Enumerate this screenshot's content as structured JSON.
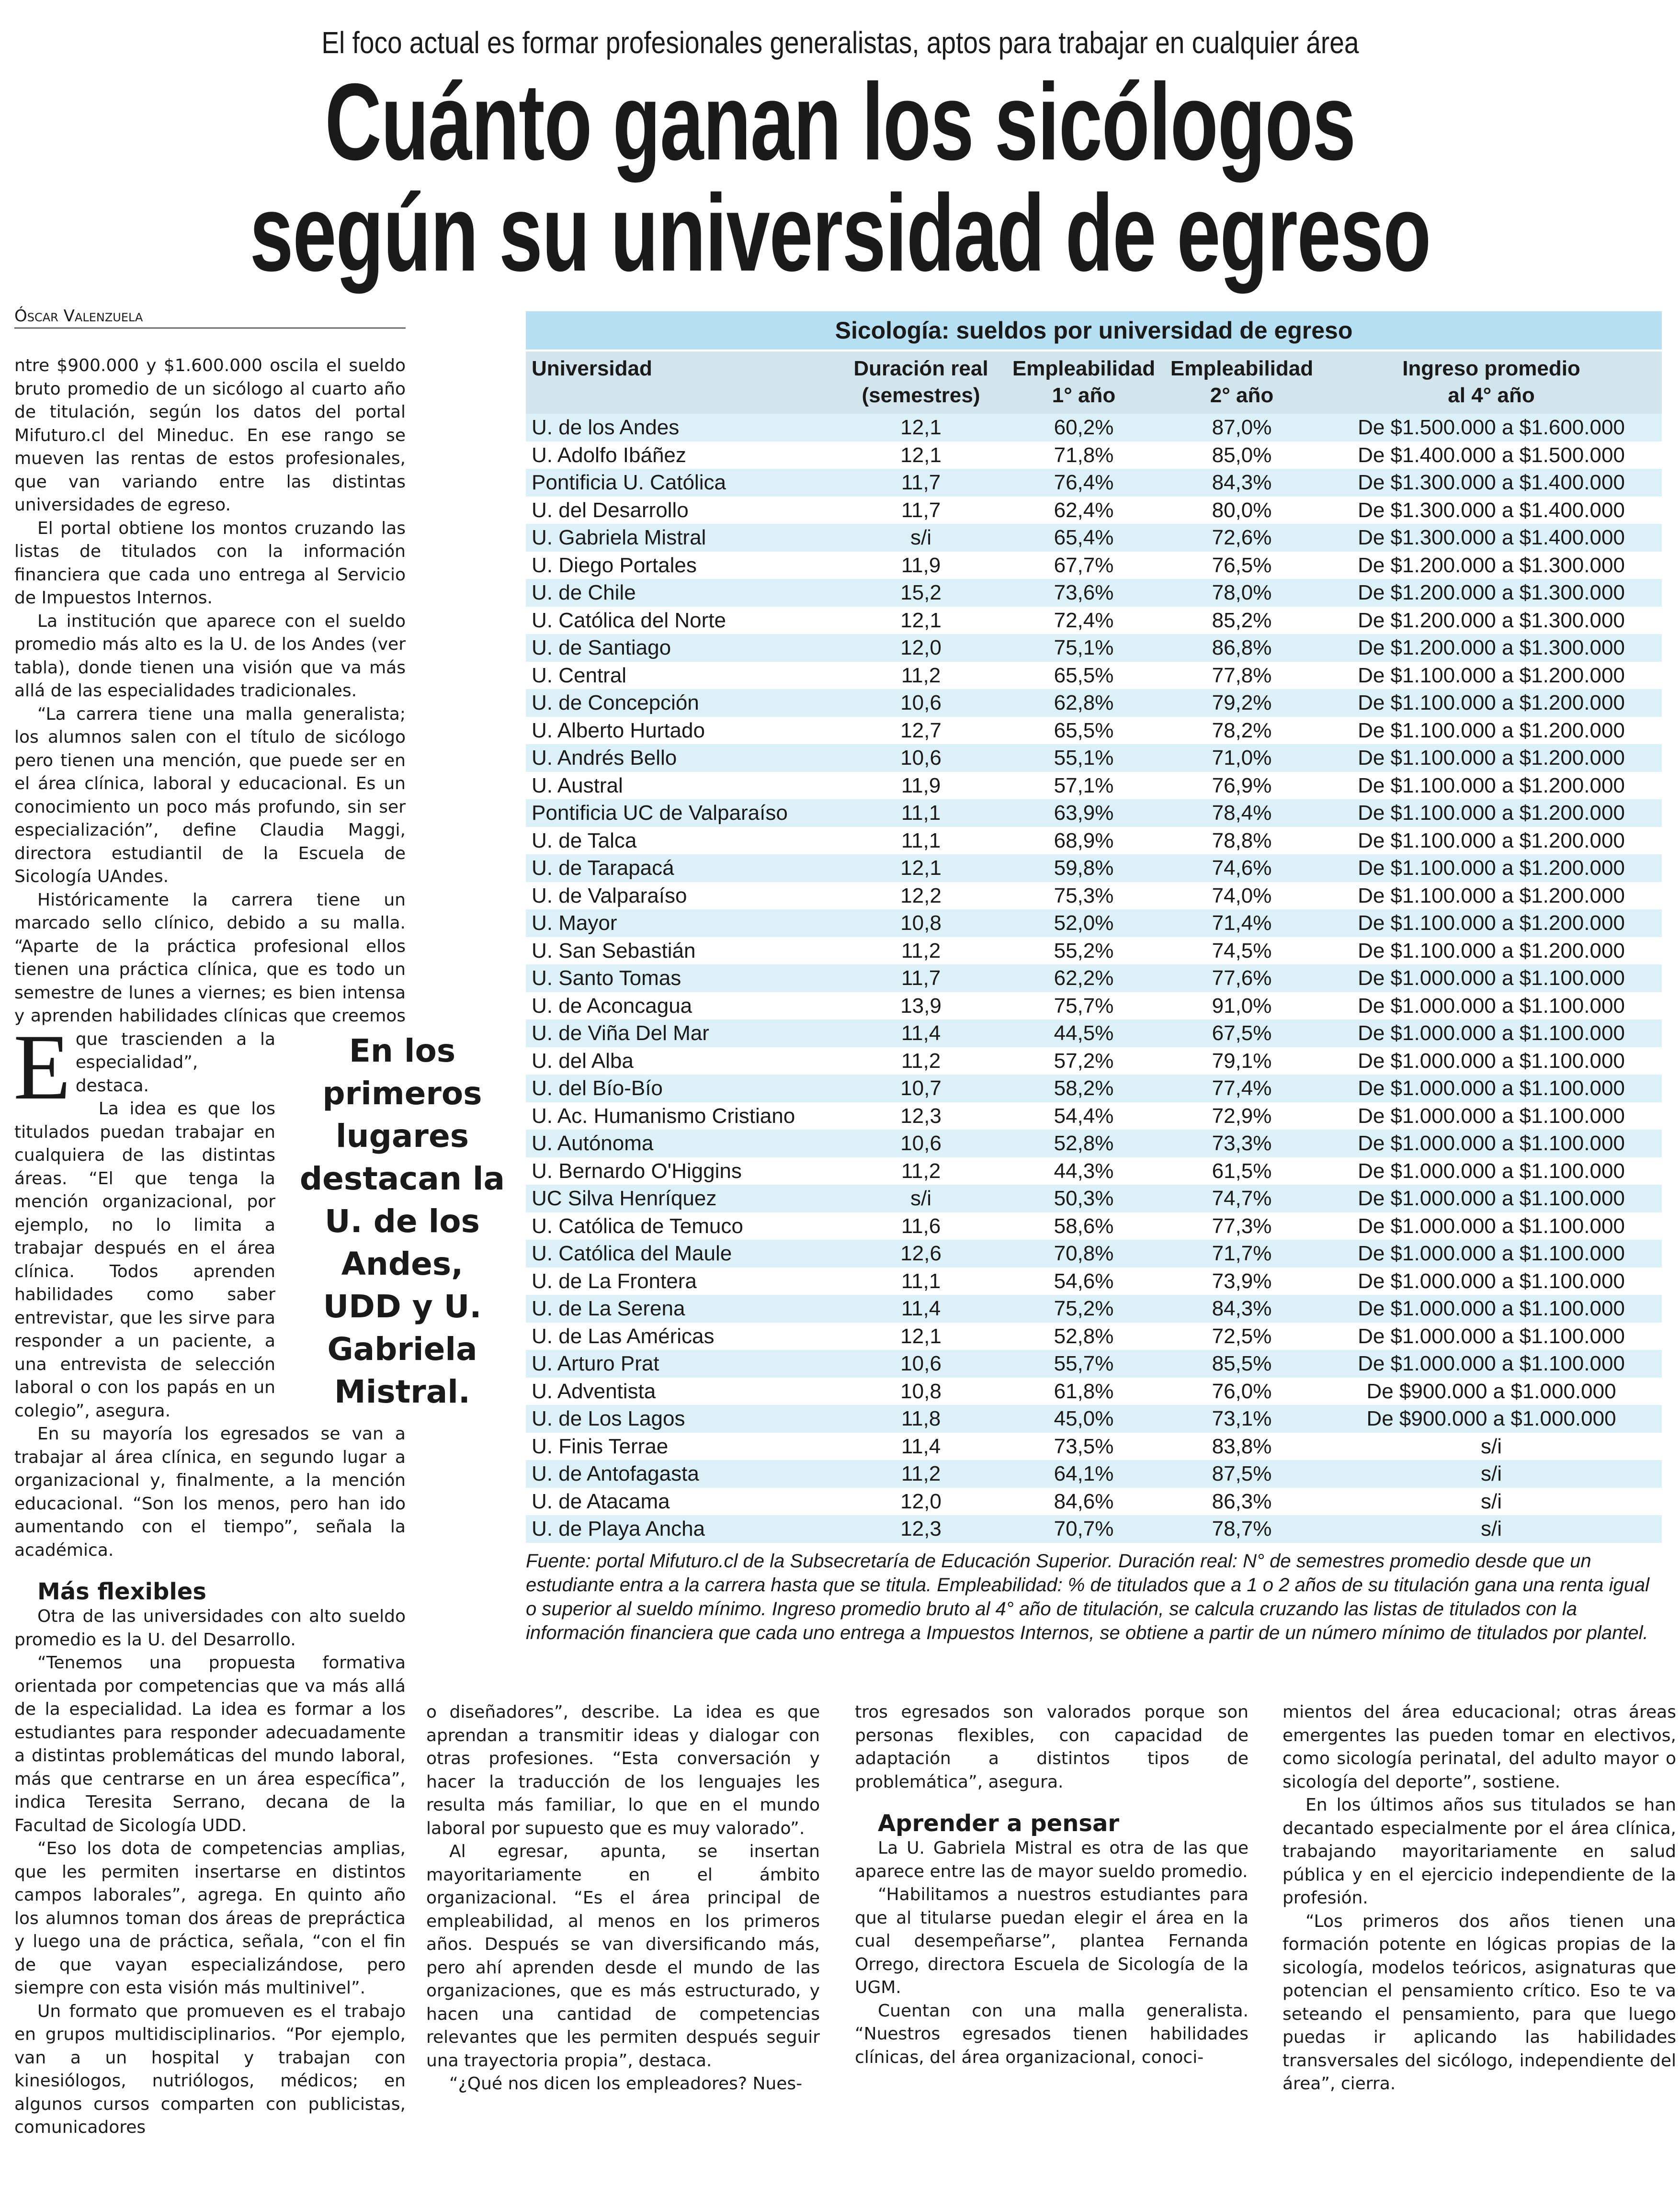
{
  "kicker": "El foco actual es formar profesionales generalistas, aptos para trabajar en cualquier área",
  "headline": [
    "Cuánto ganan los sicólogos",
    "según su universidad de egreso"
  ],
  "byline": "Óscar Valenzuela",
  "pull_quote": "En los primeros lugares destacan la U. de los Andes, UDD y U. Gabriela Mistral.",
  "drop_cap": "E",
  "columns": [
    [
      {
        "type": "p",
        "cls": "noind",
        "dropcap": true,
        "text": "ntre $900.000 y $1.600.000 oscila el sueldo bruto promedio de un sicólogo al cuarto año de titulación, según los datos del portal Mifuturo.cl del Mineduc. En ese rango se mueven las rentas de estos profesionales, que van variando entre las distintas universidades de egreso."
      },
      {
        "type": "p",
        "text": "El portal obtiene los montos cruzando las listas de titulados con la información financiera que cada uno entrega al Servicio de Impuestos Internos."
      },
      {
        "type": "p",
        "text": "La institución que aparece con el sueldo promedio más alto es la U. de los Andes (ver tabla), donde tienen una visión que va más allá de las especialidades tradicionales."
      },
      {
        "type": "p",
        "pull": true,
        "text": "“La carrera tiene una malla generalista; los alumnos salen con el título de sicólogo pero tienen una mención, que puede ser en el área clínica, laboral y educacional. Es un conocimiento un poco más profundo, sin ser especialización”, define Claudia Maggi, directora estudiantil de la Escuela de Sicología UAndes."
      },
      {
        "type": "p",
        "text": "Históricamente la carrera tiene un marcado sello clínico, debido a su malla. “Aparte de la práctica profesional ellos tienen una práctica clínica, que es todo un semestre de lunes a viernes; es bien intensa y aprenden habilidades clínicas que creemos que trascienden a la especialidad”, destaca."
      },
      {
        "type": "p",
        "text": "La idea es que los titulados puedan trabajar en cualquiera de las distintas áreas. “El que tenga la mención organizacional, por ejemplo, no lo limita a trabajar después en el área clínica. Todos aprenden habilidades como saber entrevistar, que les sirve para responder a un paciente, a una entrevista de selección laboral o con los papás en un colegio”, asegura."
      },
      {
        "type": "p",
        "text": "En su mayoría los egresados se van a trabajar al área clínica, en segundo lugar a organizacional y, finalmente, a la mención educacional. “Son los menos, pero han ido aumentando con el tiempo”, señala la académica."
      },
      {
        "type": "h",
        "text": "Más flexibles"
      },
      {
        "type": "p",
        "text": "Otra de las universidades con alto sueldo promedio es la U. del Desarrollo."
      },
      {
        "type": "p",
        "text": "“Tenemos una propuesta formativa orientada por competencias que va más allá de la especialidad. La idea es formar a los estudiantes para responder adecuadamente a distintas problemáticas del mundo laboral, más que centrarse en un área específica”, indica Teresita Serrano, decana de la Facultad de Sicología UDD."
      },
      {
        "type": "p",
        "text": "“Eso los dota de competencias amplias, que les permiten insertarse en distintos campos laborales”, agrega. En quinto año los alumnos toman dos áreas de prepráctica y luego una de práctica, señala, “con el fin de que vayan especializándose, pero siempre con esta visión más multinivel”."
      },
      {
        "type": "p",
        "text": "Un formato que promueven es el trabajo en grupos multidisciplinarios. “Por ejemplo, van a un hospital y trabajan con kinesiólogos, nutriólogos, médicos; en algunos cursos comparten con publicistas, comunicadores"
      }
    ],
    [
      {
        "type": "p",
        "cls": "noind",
        "text": "o diseñadores”, describe. La idea es que aprendan a transmitir ideas y dialogar con otras profesiones. “Esta conversación y hacer la traducción de los lenguajes les resulta más familiar, lo que en el mundo laboral por supuesto que es muy valorado”."
      },
      {
        "type": "p",
        "text": "Al egresar, apunta, se insertan mayoritariamente en el ámbito organizacional. “Es el área principal de empleabilidad, al menos en los primeros años. Después se van diversificando más, pero ahí aprenden desde el mundo de las organizaciones, que es más estructurado, y hacen una cantidad de competencias relevantes que les permiten después seguir una trayectoria propia”, destaca."
      },
      {
        "type": "p",
        "text": "“¿Qué nos dicen los empleadores? Nues-"
      }
    ],
    [
      {
        "type": "p",
        "cls": "noind",
        "text": "tros egresados son valorados porque son personas flexibles, con capacidad de adaptación a distintos tipos de problemática”, asegura."
      },
      {
        "type": "h",
        "text": "Aprender a pensar"
      },
      {
        "type": "p",
        "text": "La U. Gabriela Mistral es otra de las que aparece entre las de mayor sueldo promedio."
      },
      {
        "type": "p",
        "text": "“Habilitamos a nuestros estudiantes para que al titularse puedan elegir el área en la cual desempeñarse”, plantea Fernanda Orrego, directora Escuela de Sicología de la UGM."
      },
      {
        "type": "p",
        "text": "Cuentan con una malla generalista. “Nuestros egresados tienen habilidades clínicas, del área organizacional, conoci-"
      }
    ],
    [
      {
        "type": "p",
        "cls": "noind",
        "text": "mientos del área educacional; otras áreas emergentes las pueden tomar en electivos, como sicología perinatal, del adulto mayor o sicología del deporte”, sostiene."
      },
      {
        "type": "p",
        "text": "En los últimos años sus titulados se han decantado especialmente por el área clínica, trabajando mayoritariamente en salud pública y en el ejercicio independiente de la profesión."
      },
      {
        "type": "p",
        "text": "“Los primeros dos años tienen una formación potente en lógicas propias de la sicología, modelos teóricos, asignaturas que potencian el pensamiento crítico. Eso te va seteando el pensamiento, para que luego puedas ir aplicando las habilidades transversales del sicólogo, independiente del área”, cierra."
      }
    ]
  ],
  "table": {
    "title": "Sicología: sueldos por universidad de  egreso",
    "headers": [
      [
        "Universidad",
        ""
      ],
      [
        "Duración real",
        "(semestres)"
      ],
      [
        "Empleabilidad",
        "1° año"
      ],
      [
        "Empleabilidad",
        "2° año"
      ],
      [
        "Ingreso promedio",
        "al 4° año"
      ]
    ],
    "rows": [
      [
        "U. de los Andes",
        "12,1",
        "60,2%",
        "87,0%",
        "De $1.500.000 a $1.600.000"
      ],
      [
        "U. Adolfo Ibáñez",
        "12,1",
        "71,8%",
        "85,0%",
        "De $1.400.000 a $1.500.000"
      ],
      [
        "Pontificia U. Católica",
        "11,7",
        "76,4%",
        "84,3%",
        "De $1.300.000 a $1.400.000"
      ],
      [
        "U. del Desarrollo",
        "11,7",
        "62,4%",
        "80,0%",
        "De $1.300.000 a $1.400.000"
      ],
      [
        "U. Gabriela Mistral",
        "s/i",
        "65,4%",
        "72,6%",
        "De $1.300.000 a $1.400.000"
      ],
      [
        "U. Diego Portales",
        "11,9",
        "67,7%",
        "76,5%",
        "De $1.200.000 a $1.300.000"
      ],
      [
        "U. de Chile",
        "15,2",
        "73,6%",
        "78,0%",
        "De $1.200.000 a $1.300.000"
      ],
      [
        "U. Católica del Norte",
        "12,1",
        "72,4%",
        "85,2%",
        "De $1.200.000 a $1.300.000"
      ],
      [
        "U. de Santiago",
        "12,0",
        "75,1%",
        "86,8%",
        "De $1.200.000 a $1.300.000"
      ],
      [
        "U. Central",
        "11,2",
        "65,5%",
        "77,8%",
        "De $1.100.000 a $1.200.000"
      ],
      [
        "U. de Concepción",
        "10,6",
        "62,8%",
        "79,2%",
        "De $1.100.000 a $1.200.000"
      ],
      [
        "U. Alberto Hurtado",
        "12,7",
        "65,5%",
        "78,2%",
        "De $1.100.000 a $1.200.000"
      ],
      [
        "U. Andrés Bello",
        "10,6",
        "55,1%",
        "71,0%",
        "De $1.100.000 a $1.200.000"
      ],
      [
        "U. Austral",
        "11,9",
        "57,1%",
        "76,9%",
        "De $1.100.000 a $1.200.000"
      ],
      [
        "Pontificia UC de Valparaíso",
        "11,1",
        "63,9%",
        "78,4%",
        "De $1.100.000 a $1.200.000"
      ],
      [
        "U. de Talca",
        "11,1",
        "68,9%",
        "78,8%",
        "De $1.100.000 a $1.200.000"
      ],
      [
        "U. de Tarapacá",
        "12,1",
        "59,8%",
        "74,6%",
        "De $1.100.000 a $1.200.000"
      ],
      [
        "U. de Valparaíso",
        "12,2",
        "75,3%",
        "74,0%",
        "De $1.100.000 a $1.200.000"
      ],
      [
        "U. Mayor",
        "10,8",
        "52,0%",
        "71,4%",
        "De $1.100.000 a $1.200.000"
      ],
      [
        "U. San Sebastián",
        "11,2",
        "55,2%",
        "74,5%",
        "De $1.100.000 a $1.200.000"
      ],
      [
        "U. Santo Tomas",
        "11,7",
        "62,2%",
        "77,6%",
        "De $1.000.000 a $1.100.000"
      ],
      [
        "U. de Aconcagua",
        "13,9",
        "75,7%",
        "91,0%",
        "De $1.000.000 a $1.100.000"
      ],
      [
        "U. de Viña Del Mar",
        "11,4",
        "44,5%",
        "67,5%",
        "De $1.000.000 a $1.100.000"
      ],
      [
        "U. del Alba",
        "11,2",
        "57,2%",
        "79,1%",
        "De $1.000.000 a $1.100.000"
      ],
      [
        "U. del Bío-Bío",
        "10,7",
        "58,2%",
        "77,4%",
        "De $1.000.000 a $1.100.000"
      ],
      [
        "U. Ac. Humanismo Cristiano",
        "12,3",
        "54,4%",
        "72,9%",
        "De $1.000.000 a $1.100.000"
      ],
      [
        "U. Autónoma",
        "10,6",
        "52,8%",
        "73,3%",
        "De $1.000.000 a $1.100.000"
      ],
      [
        "U. Bernardo O'Higgins",
        "11,2",
        "44,3%",
        "61,5%",
        "De $1.000.000 a $1.100.000"
      ],
      [
        "UC Silva Henríquez",
        "s/i",
        "50,3%",
        "74,7%",
        "De $1.000.000 a $1.100.000"
      ],
      [
        "U. Católica de Temuco",
        "11,6",
        "58,6%",
        "77,3%",
        "De $1.000.000 a $1.100.000"
      ],
      [
        "U. Católica del Maule",
        "12,6",
        "70,8%",
        "71,7%",
        "De $1.000.000 a $1.100.000"
      ],
      [
        "U. de La Frontera",
        "11,1",
        "54,6%",
        "73,9%",
        "De $1.000.000 a $1.100.000"
      ],
      [
        "U. de La Serena",
        "11,4",
        "75,2%",
        "84,3%",
        "De $1.000.000 a $1.100.000"
      ],
      [
        "U. de Las Américas",
        "12,1",
        "52,8%",
        "72,5%",
        "De $1.000.000 a $1.100.000"
      ],
      [
        "U. Arturo Prat",
        "10,6",
        "55,7%",
        "85,5%",
        "De $1.000.000 a $1.100.000"
      ],
      [
        "U. Adventista",
        "10,8",
        "61,8%",
        "76,0%",
        "De $900.000 a $1.000.000"
      ],
      [
        "U. de Los Lagos",
        "11,8",
        "45,0%",
        "73,1%",
        "De $900.000 a $1.000.000"
      ],
      [
        "U. Finis Terrae",
        "11,4",
        "73,5%",
        "83,8%",
        "s/i"
      ],
      [
        "U. de Antofagasta",
        "11,2",
        "64,1%",
        "87,5%",
        "s/i"
      ],
      [
        "U. de Atacama",
        "12,0",
        "84,6%",
        "86,3%",
        "s/i"
      ],
      [
        "U. de Playa Ancha",
        "12,3",
        "70,7%",
        "78,7%",
        "s/i"
      ]
    ],
    "footnote": "Fuente: portal Mifuturo.cl de la Subsecretaría de Educación Superior. Duración real: N° de semestres promedio desde que un estudiante entra a la carrera hasta que se titula. Empleabilidad: % de titulados que a 1 o 2 años de su titulación gana una renta igual o superior al sueldo mínimo. Ingreso promedio bruto al 4° año de titulación, se calcula cruzando las listas de titulados con la información financiera que cada uno entrega a Impuestos Internos, se obtiene a partir de un número mínimo de titulados por plantel."
  },
  "colors": {
    "table_title_bg": "#b7dff2",
    "table_header_bg": "#d3e5ec",
    "row_alt_bg": "#dcf0f8"
  }
}
